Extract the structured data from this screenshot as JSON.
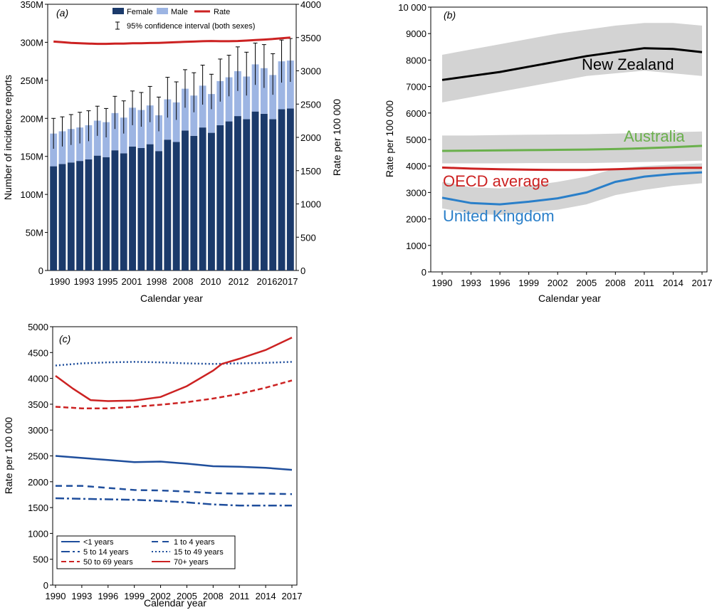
{
  "chart_data": [
    {
      "panel": "(a)",
      "type": "bar",
      "xlabel": "Calendar year",
      "ylabel": "Number of incidence reports",
      "y2label": "Rate per 100 000",
      "ylim": [
        0,
        350000000
      ],
      "y2lim": [
        0,
        4000
      ],
      "yticks": [
        "0",
        "50M",
        "100M",
        "150M",
        "200M",
        "250M",
        "300M",
        "350M"
      ],
      "y2ticks": [
        "0",
        "500",
        "1000",
        "1500",
        "2000",
        "2500",
        "3000",
        "3500",
        "4000"
      ],
      "xticks": [
        "1990",
        "1993",
        "1995",
        "2001",
        "1998",
        "2008",
        "2010",
        "2012",
        "2016",
        "2017"
      ],
      "categories": [
        "1990",
        "1991",
        "1992",
        "1993",
        "1994",
        "1995",
        "1996",
        "1997",
        "1998",
        "1999",
        "2000",
        "2001",
        "2002",
        "2003",
        "2004",
        "2005",
        "2006",
        "2007",
        "2008",
        "2009",
        "2010",
        "2011",
        "2012",
        "2013",
        "2014",
        "2015",
        "2016",
        "2017"
      ],
      "legend": {
        "female": "Female",
        "male": "Male",
        "rate": "Rate",
        "ci": "95% confidence interval (both sexes)"
      },
      "colors": {
        "female": "#1b3a6b",
        "male": "#9db5e3",
        "rate": "#cc2222"
      },
      "series": [
        {
          "name": "Female",
          "values": [
            137,
            140,
            142,
            144,
            146,
            151,
            149,
            158,
            154,
            163,
            161,
            166,
            157,
            172,
            169,
            184,
            177,
            188,
            181,
            191,
            196,
            203,
            199,
            209,
            206,
            199,
            212,
            213
          ]
        },
        {
          "name": "Male",
          "values": [
            43,
            43,
            44,
            44,
            45,
            46,
            46,
            49,
            47,
            51,
            50,
            51,
            47,
            53,
            52,
            55,
            53,
            55,
            51,
            58,
            58,
            59,
            56,
            62,
            60,
            58,
            63,
            63
          ]
        },
        {
          "name": "Rate",
          "values": [
            3440,
            3430,
            3420,
            3415,
            3410,
            3405,
            3405,
            3410,
            3410,
            3415,
            3415,
            3418,
            3420,
            3425,
            3430,
            3435,
            3440,
            3445,
            3448,
            3445,
            3445,
            3448,
            3455,
            3462,
            3470,
            3478,
            3490,
            3500
          ]
        }
      ],
      "ci_upper": [
        200,
        202,
        205,
        208,
        210,
        216,
        213,
        229,
        223,
        236,
        234,
        242,
        228,
        254,
        248,
        264,
        260,
        270,
        258,
        278,
        283,
        294,
        287,
        299,
        297,
        285,
        303,
        305
      ],
      "ci_lower": [
        160,
        163,
        165,
        167,
        170,
        177,
        175,
        186,
        180,
        191,
        189,
        195,
        183,
        201,
        198,
        214,
        208,
        218,
        212,
        222,
        229,
        236,
        230,
        244,
        240,
        231,
        247,
        248
      ]
    },
    {
      "panel": "(b)",
      "type": "line",
      "xlabel": "Calendar year",
      "ylabel": "Rate per 100 000",
      "ylim": [
        0,
        10000
      ],
      "yticks": [
        "0",
        "1000",
        "2000",
        "3000",
        "4000",
        "5000",
        "6000",
        "7000",
        "8000",
        "9000",
        "10 000"
      ],
      "xticks": [
        "1990",
        "1993",
        "1996",
        "1999",
        "2002",
        "2005",
        "2008",
        "2011",
        "2014",
        "2017"
      ],
      "series": [
        {
          "name": "New Zealand",
          "color": "#000000",
          "x": [
            1990,
            1993,
            1996,
            1999,
            2002,
            2005,
            2008,
            2011,
            2014,
            2017
          ],
          "values": [
            7250,
            7400,
            7550,
            7750,
            7950,
            8150,
            8300,
            8450,
            8420,
            8300
          ],
          "ci_upper": [
            8200,
            8400,
            8600,
            8800,
            9000,
            9150,
            9300,
            9400,
            9400,
            9300
          ],
          "ci_lower": [
            6400,
            6600,
            6800,
            7000,
            7200,
            7400,
            7500,
            7600,
            7500,
            7400
          ]
        },
        {
          "name": "Australia",
          "color": "#6ab04c",
          "x": [
            1990,
            1993,
            1996,
            1999,
            2002,
            2005,
            2008,
            2011,
            2014,
            2017
          ],
          "values": [
            4570,
            4580,
            4590,
            4600,
            4610,
            4620,
            4640,
            4670,
            4710,
            4760
          ],
          "ci_upper": [
            5150,
            5150,
            5170,
            5180,
            5190,
            5200,
            5220,
            5250,
            5280,
            5300
          ],
          "ci_lower": [
            4100,
            4100,
            4100,
            4110,
            4110,
            4110,
            4130,
            4150,
            4170,
            4200
          ]
        },
        {
          "name": "OECD average",
          "color": "#cc2222",
          "x": [
            1990,
            1993,
            1996,
            1999,
            2002,
            2005,
            2008,
            2011,
            2014,
            2017
          ],
          "values": [
            3940,
            3900,
            3880,
            3860,
            3850,
            3850,
            3880,
            3910,
            3930,
            3930
          ]
        },
        {
          "name": "United Kingdom",
          "color": "#2a7fc9",
          "x": [
            1990,
            1993,
            1996,
            1999,
            2002,
            2005,
            2008,
            2011,
            2014,
            2017
          ],
          "values": [
            2800,
            2600,
            2550,
            2650,
            2780,
            3000,
            3400,
            3600,
            3700,
            3760
          ],
          "ci_upper": [
            3400,
            3200,
            3150,
            3250,
            3400,
            3600,
            3900,
            4000,
            4050,
            4100
          ],
          "ci_lower": [
            2400,
            2200,
            2150,
            2250,
            2350,
            2550,
            2900,
            3100,
            3250,
            3350
          ]
        }
      ]
    },
    {
      "panel": "(c)",
      "type": "line",
      "xlabel": "Calendar year",
      "ylabel": "Rate per 100 000",
      "ylim": [
        0,
        5000
      ],
      "yticks": [
        "0",
        "500",
        "1000",
        "1500",
        "2000",
        "2500",
        "3000",
        "3500",
        "4000",
        "4500",
        "5000"
      ],
      "xticks": [
        "1990",
        "1993",
        "1996",
        "1999",
        "2002",
        "2005",
        "2008",
        "2011",
        "2014",
        "2017"
      ],
      "series": [
        {
          "name": "<1 years",
          "color": "#1f4e9c",
          "dash": "",
          "x": [
            1990,
            1993,
            1996,
            1999,
            2002,
            2005,
            2008,
            2011,
            2014,
            2017
          ],
          "values": [
            2500,
            2460,
            2420,
            2380,
            2390,
            2350,
            2300,
            2290,
            2270,
            2230
          ]
        },
        {
          "name": "1 to 4 years",
          "color": "#1f4e9c",
          "dash": "9,6",
          "x": [
            1990,
            1993,
            1996,
            1999,
            2002,
            2005,
            2008,
            2011,
            2014,
            2017
          ],
          "values": [
            1920,
            1920,
            1880,
            1840,
            1830,
            1810,
            1780,
            1770,
            1770,
            1760
          ]
        },
        {
          "name": "5 to 14 years",
          "color": "#1f4e9c",
          "dash": "12,4,3,4",
          "x": [
            1990,
            1993,
            1996,
            1999,
            2002,
            2005,
            2008,
            2011,
            2014,
            2017
          ],
          "values": [
            1680,
            1670,
            1660,
            1650,
            1630,
            1600,
            1560,
            1540,
            1540,
            1540
          ]
        },
        {
          "name": "15 to 49 years",
          "color": "#1f4e9c",
          "dash": "2,3",
          "x": [
            1990,
            1993,
            1996,
            1999,
            2002,
            2005,
            2008,
            2011,
            2014,
            2017
          ],
          "values": [
            4250,
            4290,
            4310,
            4320,
            4310,
            4290,
            4280,
            4290,
            4300,
            4320
          ]
        },
        {
          "name": "50 to 69 years",
          "color": "#cc2222",
          "dash": "7,4",
          "x": [
            1990,
            1993,
            1996,
            1999,
            2002,
            2005,
            2008,
            2011,
            2014,
            2017
          ],
          "values": [
            3450,
            3420,
            3420,
            3450,
            3490,
            3540,
            3610,
            3700,
            3820,
            3960
          ]
        },
        {
          "name": "70+ years",
          "color": "#cc2222",
          "dash": "",
          "x": [
            1990,
            1992,
            1994,
            1996,
            1999,
            2002,
            2005,
            2008,
            2009,
            2011,
            2014,
            2017
          ],
          "values": [
            4050,
            3800,
            3580,
            3560,
            3570,
            3640,
            3850,
            4150,
            4280,
            4380,
            4550,
            4790
          ]
        }
      ]
    }
  ]
}
